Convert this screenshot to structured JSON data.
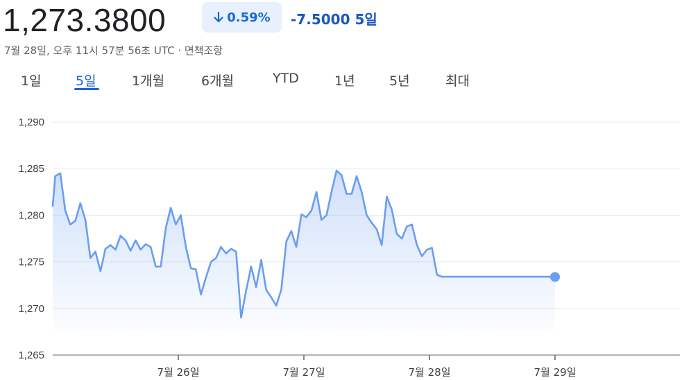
{
  "header": {
    "price": "1,273.3800",
    "change_percent": "0.59%",
    "change_abs": "-7.5000 5일",
    "meta": "7월 28일, 오후 11시 57분 56초 UTC · 면책조항"
  },
  "tabs": [
    {
      "label": "1일",
      "active": false
    },
    {
      "label": "5일",
      "active": true
    },
    {
      "label": "1개월",
      "active": false
    },
    {
      "label": "6개월",
      "active": false
    },
    {
      "label": "YTD",
      "active": false
    },
    {
      "label": "1년",
      "active": false
    },
    {
      "label": "5년",
      "active": false
    },
    {
      "label": "최대",
      "active": false
    }
  ],
  "colors": {
    "accent": "#1967d2",
    "line": "#6a9df0",
    "pill_bg": "#e8f0fe",
    "grid": "#e8eaed"
  },
  "chart_data": {
    "type": "area",
    "y_ticks": [
      "1,290",
      "1,285",
      "1,280",
      "1,275",
      "1,270",
      "1,265"
    ],
    "x_ticks": [
      "7월 26일",
      "7월 27일",
      "7월 28일",
      "7월 29일"
    ],
    "ylim": [
      1265,
      1290
    ],
    "xlim": [
      0,
      5
    ],
    "grid": true,
    "series": [
      {
        "x": [
          0,
          0.02,
          0.06,
          0.1,
          0.14,
          0.18,
          0.22,
          0.26,
          0.3,
          0.34,
          0.38,
          0.42,
          0.46,
          0.5,
          0.54,
          0.58,
          0.62,
          0.66,
          0.7,
          0.74,
          0.78,
          0.82,
          0.86,
          0.9,
          0.94,
          0.98,
          1.02,
          1.06,
          1.1,
          1.14,
          1.18,
          1.22,
          1.26,
          1.3,
          1.34,
          1.38,
          1.42,
          1.46,
          1.5,
          1.54,
          1.58,
          1.62,
          1.66,
          1.7,
          1.74,
          1.78,
          1.82,
          1.86,
          1.9,
          1.94,
          1.98,
          2.02,
          2.06,
          2.1,
          2.14,
          2.18,
          2.22,
          2.26,
          2.3,
          2.34,
          2.38,
          2.42,
          2.46,
          2.5,
          2.54,
          2.58,
          2.62,
          2.66,
          2.7,
          2.74,
          2.78,
          2.82,
          2.86,
          2.9,
          2.94,
          2.98,
          3.02,
          3.06,
          3.1,
          3.14,
          3.18,
          3.22,
          3.26,
          3.3,
          3.34,
          3.38,
          3.42,
          3.46,
          3.5,
          3.54,
          3.58,
          3.62,
          3.66,
          3.7,
          3.74,
          3.78,
          3.82,
          3.86,
          3.9,
          3.94,
          3.98,
          4.0
        ],
        "y": [
          1281.0,
          1284.2,
          1284.5,
          1280.5,
          1279.0,
          1279.4,
          1281.3,
          1279.5,
          1275.4,
          1276.1,
          1274.0,
          1276.4,
          1276.8,
          1276.3,
          1277.8,
          1277.3,
          1276.2,
          1277.3,
          1276.3,
          1276.9,
          1276.6,
          1274.5,
          1274.5,
          1278.6,
          1280.8,
          1279.0,
          1280.0,
          1276.6,
          1274.3,
          1274.2,
          1271.5,
          1273.3,
          1275.0,
          1275.4,
          1276.6,
          1275.9,
          1276.4,
          1276.1,
          1269.0,
          1271.9,
          1274.5,
          1272.3,
          1275.2,
          1272.0,
          1271.2,
          1270.3,
          1272.0,
          1277.2,
          1278.3,
          1276.6,
          1280.1,
          1279.8,
          1280.5,
          1282.5,
          1279.5,
          1280.0,
          1282.5,
          1284.8,
          1284.3,
          1282.3,
          1282.3,
          1284.2,
          1282.5,
          1280.0,
          1279.2,
          1278.5,
          1276.8,
          1282.0,
          1280.6,
          1278.0,
          1277.5,
          1278.8,
          1279.0,
          1276.8,
          1275.6,
          1276.3,
          1276.5,
          1273.6,
          1273.4,
          1273.4,
          1273.4,
          1273.4,
          1273.4,
          1273.4,
          1273.4,
          1273.4,
          1273.4,
          1273.4,
          1273.4,
          1273.4,
          1273.4,
          1273.4,
          1273.4,
          1273.4,
          1273.4,
          1273.4,
          1273.4,
          1273.4,
          1273.4,
          1273.4,
          1273.4,
          1273.38
        ]
      }
    ]
  }
}
